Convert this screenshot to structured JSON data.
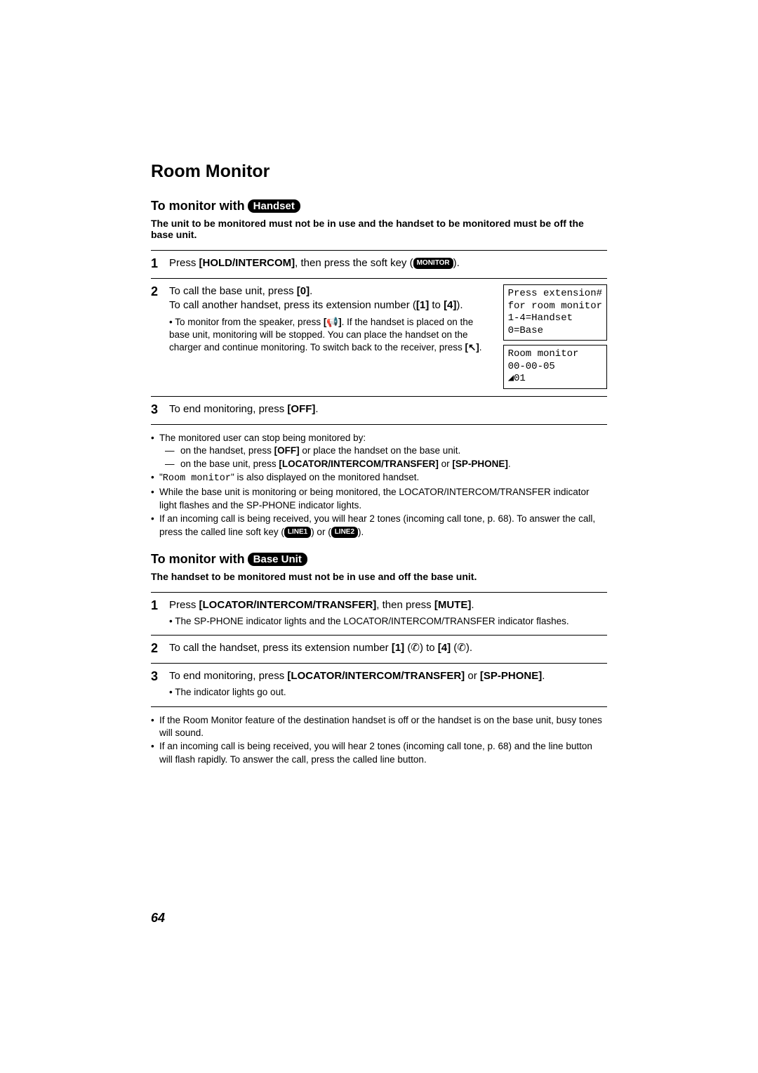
{
  "title": "Room Monitor",
  "handset": {
    "heading_prefix": "To monitor with",
    "pill": "Handset",
    "intro": "The unit to be monitored must not be in use and the handset to be monitored must be off the base unit.",
    "step1": {
      "num": "1",
      "text_a": "Press ",
      "bold_a": "[HOLD/INTERCOM]",
      "text_b": ", then press the soft key (",
      "pill": "MONITOR",
      "text_c": ")."
    },
    "step2": {
      "num": "2",
      "line1_a": "To call the base unit, press ",
      "line1_b": "[0]",
      "line1_c": ".",
      "line2": "To call another handset, press its extension number (",
      "line2_b": "[1]",
      "line2_c": " to ",
      "line2_d": "[4]",
      "line2_e": ").",
      "sub_a": "To monitor from the speaker, press ",
      "sub_b": ". If the handset is placed on the base unit, monitoring will be stopped. You can place the handset on the charger and continue monitoring. To switch back to the receiver, press ",
      "sub_c": "."
    },
    "step3": {
      "num": "3",
      "text_a": "To end monitoring, press ",
      "bold": "[OFF]",
      "text_b": "."
    },
    "screen1": "Press extension#\nfor room monitor\n1-4=Handset\n0=Base",
    "screen2": "Room monitor\n00-00-05\n◢01",
    "notes": {
      "b1": "The monitored user can stop being monitored by:",
      "s1_a": "on the handset, press ",
      "s1_b": "[OFF]",
      "s1_c": " or place the handset on the base unit.",
      "s2_a": "on the base unit, press ",
      "s2_b": "[LOCATOR/INTERCOM/TRANSFER]",
      "s2_c": " or ",
      "s2_d": "[SP-PHONE]",
      "s2_e": ".",
      "b2_a": "\"",
      "b2_b": "Room monitor",
      "b2_c": "\" is also displayed on the monitored handset.",
      "b3": "While the base unit is monitoring or being monitored, the LOCATOR/INTERCOM/TRANSFER indicator light flashes and the SP-PHONE indicator lights.",
      "b4_a": "If an incoming call is being received, you will hear 2 tones (incoming call tone, p. 68). To answer the call, press the called line soft key (",
      "b4_p1": "LINE1",
      "b4_b": ") or (",
      "b4_p2": "LINE2",
      "b4_c": ")."
    }
  },
  "base": {
    "heading_prefix": "To monitor with",
    "pill": "Base Unit",
    "intro": "The handset to be monitored must not be in use and off the base unit.",
    "step1": {
      "num": "1",
      "text_a": "Press ",
      "bold_a": "[LOCATOR/INTERCOM/TRANSFER]",
      "text_b": ", then press ",
      "bold_b": "[MUTE]",
      "text_c": ".",
      "sub": "The SP-PHONE indicator lights and the LOCATOR/INTERCOM/TRANSFER indicator flashes."
    },
    "step2": {
      "num": "2",
      "text_a": "To call the handset, press its extension number ",
      "b1": "[1]",
      "mid": " to ",
      "b2": "[4]",
      "end": "."
    },
    "step3": {
      "num": "3",
      "text_a": "To end monitoring, press ",
      "bold_a": "[LOCATOR/INTERCOM/TRANSFER]",
      "text_b": " or ",
      "bold_b": "[SP-PHONE]",
      "text_c": ".",
      "sub": "The indicator lights go out."
    },
    "notes": {
      "b1": "If the Room Monitor feature of the destination handset is off or the handset is on the base unit, busy tones will sound.",
      "b2": "If an incoming call is being received, you will hear 2 tones (incoming call tone, p. 68) and the line button will flash rapidly. To answer the call, press the called line button."
    }
  },
  "page_number": "64"
}
